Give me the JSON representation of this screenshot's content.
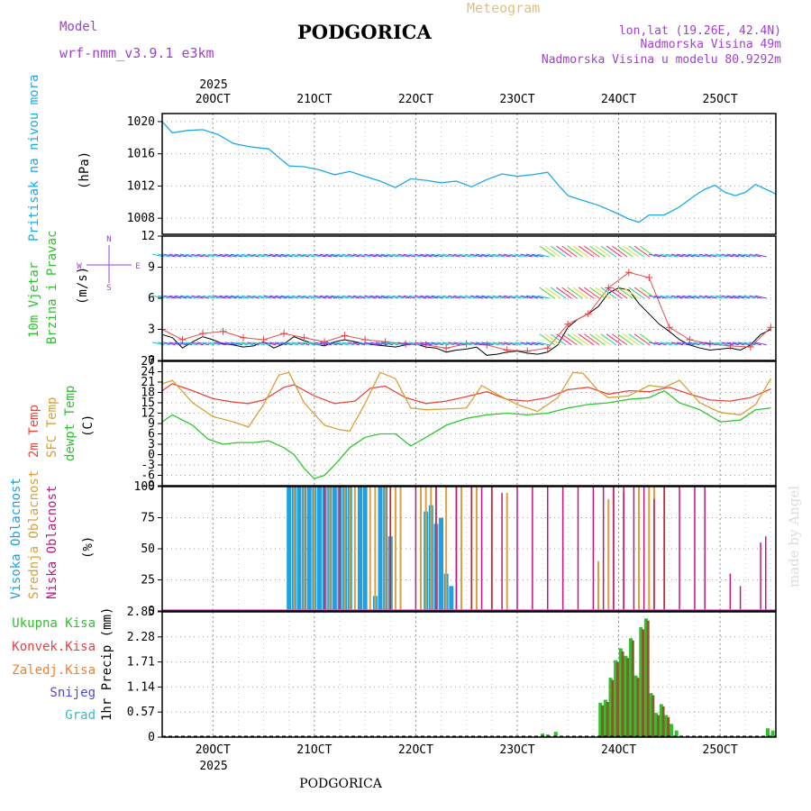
{
  "header": {
    "model_label": "Model",
    "model_name": "wrf-nmm_v3.9.1 e3km",
    "city": "PODGORICA",
    "meteogram": "Meteogram",
    "lonlat": "lon,lat (19.26E, 42.4N)",
    "elevation": "Nadmorska Visina 49m",
    "model_elevation": "Nadmorska Visina u modelu 80.9292m"
  },
  "footer_city": "PODGORICA",
  "watermark": "made by Angel",
  "colors": {
    "pressure": "#1ea8e8",
    "temp2m": "#e8483c",
    "sfc": "#d8a038",
    "dewpt": "#30c830",
    "high_cloud": "#20a0e0",
    "mid_cloud": "#d8a040",
    "low_cloud": "#c01880",
    "total_precip": "#30c030",
    "conv_precip": "#8a5a28",
    "wind_label": "#30c030",
    "title_purple": "#a040d0",
    "meteogram_tan": "#e0c080"
  },
  "chart_data": [
    {
      "type": "line",
      "id": "pressure",
      "xlabels": [
        "20OCT",
        "21OCT",
        "22OCT",
        "23OCT",
        "24OCT",
        "25OCT"
      ],
      "year": "2025",
      "ylabel": "Pritisak na nivou mora",
      "unit": "(hPa)",
      "ylim": [
        1006,
        1021
      ],
      "yticks": [
        "1008",
        "1012",
        "1016",
        "1020"
      ],
      "series": [
        {
          "name": "pressure",
          "x": [
            19.5,
            19.6,
            19.75,
            19.9,
            20.05,
            20.2,
            20.35,
            20.55,
            20.75,
            20.9,
            21.05,
            21.2,
            21.35,
            21.5,
            21.65,
            21.8,
            21.95,
            22.1,
            22.25,
            22.4,
            22.55,
            22.7,
            22.85,
            23.0,
            23.15,
            23.3,
            23.4,
            23.5,
            23.65,
            23.8,
            23.95,
            24.1,
            24.2,
            24.3,
            24.45,
            24.6,
            24.75,
            24.85,
            24.95,
            25.05,
            25.15,
            25.25,
            25.35,
            25.45,
            25.55
          ],
          "values": [
            1020,
            1018.6,
            1018.9,
            1019,
            1018.4,
            1017.3,
            1016.9,
            1016.6,
            1014.5,
            1014.4,
            1014,
            1013.4,
            1013.8,
            1013.2,
            1012.6,
            1011.8,
            1012.9,
            1012.7,
            1012.4,
            1012.6,
            1011.9,
            1012.8,
            1013.5,
            1013.2,
            1013.4,
            1013.7,
            1012.2,
            1010.8,
            1010.2,
            1009.6,
            1008.8,
            1007.9,
            1007.5,
            1008.4,
            1008.4,
            1009.4,
            1010.8,
            1011.6,
            1012.1,
            1011.2,
            1010.8,
            1011.2,
            1012.2,
            1011.6,
            1011
          ]
        }
      ]
    },
    {
      "type": "line",
      "id": "wind",
      "ylabel_line1": "10m Vjetar",
      "ylabel_line2": "Brzina i Pravac",
      "unit": "(m/s)",
      "compass": {
        "n": "N",
        "s": "S",
        "e": "E",
        "w": "W"
      },
      "ylim": [
        0,
        12
      ],
      "yticks": [
        "0",
        "3",
        "6",
        "9",
        "12"
      ],
      "series": [
        {
          "name": "wind_speed_10m",
          "x": [
            19.5,
            19.6,
            19.7,
            19.8,
            19.9,
            20.0,
            20.1,
            20.2,
            20.3,
            20.4,
            20.5,
            20.6,
            20.7,
            20.8,
            20.9,
            21.0,
            21.1,
            21.2,
            21.3,
            21.4,
            21.5,
            21.6,
            21.7,
            21.8,
            21.9,
            22.0,
            22.1,
            22.2,
            22.3,
            22.4,
            22.5,
            22.6,
            22.7,
            22.8,
            22.9,
            23.0,
            23.1,
            23.2,
            23.3,
            23.4,
            23.5,
            23.6,
            23.7,
            23.8,
            23.9,
            24.0,
            24.1,
            24.2,
            24.3,
            24.4,
            24.5,
            24.6,
            24.7,
            24.8,
            24.9,
            25.0,
            25.1,
            25.2,
            25.3,
            25.4,
            25.5
          ],
          "values": [
            2.5,
            2.2,
            1.2,
            1.8,
            2.3,
            2.0,
            1.6,
            1.5,
            1.3,
            1.4,
            1.8,
            1.2,
            1.6,
            2.3,
            1.9,
            1.6,
            1.4,
            1.8,
            2.0,
            1.8,
            1.6,
            1.5,
            1.4,
            1.3,
            1.5,
            1.6,
            1.3,
            1.2,
            0.8,
            1.0,
            1.1,
            1.3,
            0.5,
            0.6,
            0.8,
            0.9,
            0.7,
            0.6,
            0.8,
            1.5,
            3.2,
            4.0,
            4.5,
            5.2,
            6.5,
            7.0,
            6.8,
            5.5,
            4.5,
            3.5,
            2.8,
            2.0,
            1.5,
            1.2,
            1.0,
            1.1,
            1.2,
            1.0,
            1.5,
            2.5,
            3.0
          ]
        },
        {
          "name": "wind_gust",
          "x": [
            19.5,
            19.7,
            19.9,
            20.1,
            20.3,
            20.5,
            20.7,
            20.9,
            21.1,
            21.3,
            21.5,
            21.7,
            21.9,
            22.1,
            22.3,
            22.5,
            22.7,
            22.9,
            23.1,
            23.3,
            23.5,
            23.7,
            23.9,
            24.1,
            24.3,
            24.5,
            24.7,
            24.9,
            25.1,
            25.3,
            25.5
          ],
          "values": [
            3.0,
            2.0,
            2.6,
            2.8,
            2.2,
            2.0,
            2.6,
            2.2,
            1.8,
            2.4,
            2.0,
            1.8,
            1.6,
            1.5,
            1.2,
            1.6,
            1.5,
            1.0,
            0.9,
            1.2,
            3.5,
            4.5,
            7.0,
            8.5,
            8.0,
            3.2,
            2.0,
            1.6,
            1.4,
            1.3,
            3.2
          ]
        }
      ]
    },
    {
      "type": "line",
      "id": "temperature",
      "ylabel_2m": "2m Temp",
      "ylabel_sfc": "SFC Temp",
      "ylabel_dew": "dewpt Temp",
      "unit": "(C)",
      "ylim": [
        -9,
        27
      ],
      "yticks": [
        "-9",
        "-6",
        "-3",
        "0",
        "3",
        "6",
        "9",
        "12",
        "15",
        "18",
        "21",
        "24",
        "27"
      ],
      "series": [
        {
          "name": "2m Temp",
          "x": [
            19.5,
            19.6,
            19.8,
            20.0,
            20.2,
            20.35,
            20.5,
            20.7,
            20.8,
            21.0,
            21.2,
            21.4,
            21.55,
            21.7,
            21.9,
            22.1,
            22.3,
            22.5,
            22.7,
            22.9,
            23.1,
            23.3,
            23.5,
            23.7,
            23.9,
            24.1,
            24.3,
            24.5,
            24.7,
            24.9,
            25.1,
            25.3,
            25.5
          ],
          "values": [
            18.5,
            20.5,
            18.5,
            16.2,
            15.2,
            14.8,
            15.8,
            19.5,
            20.2,
            17.0,
            14.8,
            15.5,
            19.2,
            19.8,
            16.5,
            14.8,
            15.5,
            16.8,
            18.2,
            16.0,
            15.5,
            16.5,
            18.8,
            19.5,
            17.5,
            18.5,
            18.2,
            19.5,
            17.5,
            15.8,
            15.5,
            16.5,
            19.0
          ]
        },
        {
          "name": "SFC Temp",
          "x": [
            19.5,
            19.6,
            19.8,
            20.0,
            20.2,
            20.35,
            20.5,
            20.65,
            20.75,
            20.9,
            21.1,
            21.25,
            21.35,
            21.5,
            21.65,
            21.8,
            21.95,
            22.1,
            22.3,
            22.5,
            22.65,
            22.8,
            23.0,
            23.2,
            23.4,
            23.55,
            23.65,
            23.8,
            23.9,
            24.1,
            24.3,
            24.45,
            24.6,
            24.8,
            25.0,
            25.2,
            25.35,
            25.5
          ],
          "values": [
            20.5,
            21.5,
            15.0,
            11.0,
            9.5,
            8.0,
            14.5,
            23.0,
            23.8,
            15.0,
            8.5,
            7.2,
            6.8,
            14.8,
            23.8,
            22.0,
            13.5,
            13.0,
            13.2,
            13.5,
            20.0,
            17.5,
            14.5,
            12.5,
            16.5,
            23.8,
            23.5,
            18.5,
            16.5,
            17.0,
            20.0,
            19.5,
            21.5,
            15.0,
            12.2,
            11.5,
            14.5,
            22.0
          ]
        },
        {
          "name": "dewpt Temp",
          "x": [
            19.5,
            19.6,
            19.8,
            19.95,
            20.1,
            20.25,
            20.4,
            20.55,
            20.7,
            20.8,
            20.9,
            21.0,
            21.1,
            21.2,
            21.35,
            21.5,
            21.65,
            21.8,
            21.95,
            22.1,
            22.3,
            22.5,
            22.7,
            22.9,
            23.1,
            23.3,
            23.5,
            23.7,
            23.9,
            24.1,
            24.3,
            24.45,
            24.6,
            24.8,
            25.0,
            25.2,
            25.35,
            25.5
          ],
          "values": [
            9.5,
            11.5,
            8.5,
            4.5,
            3.0,
            3.5,
            3.5,
            4.0,
            2.0,
            0.0,
            -4.0,
            -7.0,
            -6.0,
            -3.0,
            2.0,
            5.0,
            6.0,
            6.0,
            2.5,
            5.0,
            8.5,
            10.5,
            11.5,
            12.0,
            11.5,
            12.0,
            13.5,
            14.5,
            15.0,
            16.0,
            16.5,
            18.5,
            15.0,
            13.0,
            9.5,
            10.0,
            13.0,
            13.5
          ]
        }
      ]
    },
    {
      "type": "bar",
      "id": "clouds",
      "ylabel_high": "Visoka Oblacnost",
      "ylabel_mid": "Srednja Oblacnost",
      "ylabel_low": "Niska Oblacnost",
      "unit": "(%)",
      "ylim": [
        0,
        100
      ],
      "yticks": [
        "0",
        "25",
        "50",
        "75",
        "100"
      ],
      "series": [
        {
          "name": "Visoka Oblacnost",
          "x": [
            20.75,
            20.8,
            20.85,
            20.9,
            20.95,
            21.0,
            21.05,
            21.1,
            21.15,
            21.2,
            21.25,
            21.3,
            21.35,
            21.45,
            21.5,
            21.6,
            21.65,
            21.7,
            21.75,
            22.1,
            22.15,
            22.2,
            22.25,
            22.3,
            22.35
          ],
          "values": [
            100,
            100,
            100,
            100,
            100,
            100,
            100,
            100,
            100,
            100,
            100,
            100,
            100,
            100,
            100,
            12,
            100,
            100,
            60,
            80,
            85,
            70,
            75,
            30,
            20
          ]
        },
        {
          "name": "Srednja Oblacnost",
          "x": [
            20.8,
            20.9,
            21.0,
            21.1,
            21.15,
            21.25,
            21.3,
            21.35,
            21.4,
            21.55,
            21.6,
            21.7,
            21.75,
            21.8,
            21.85,
            22.05,
            22.1,
            22.15,
            22.2,
            22.3,
            22.4,
            22.45,
            22.55,
            22.6,
            22.75,
            22.9,
            23.8,
            23.9,
            23.95,
            24.05,
            24.2,
            24.3,
            24.35,
            24.45
          ],
          "values": [
            100,
            100,
            100,
            100,
            100,
            100,
            100,
            100,
            100,
            100,
            100,
            100,
            100,
            100,
            100,
            100,
            100,
            100,
            100,
            100,
            100,
            100,
            100,
            100,
            100,
            95,
            40,
            90,
            100,
            95,
            100,
            100,
            100,
            100
          ]
        },
        {
          "name": "Niska Oblacnost",
          "x": [
            21.1,
            21.25,
            21.75,
            22.0,
            22.2,
            22.4,
            22.55,
            22.65,
            22.75,
            22.85,
            23.0,
            23.15,
            23.3,
            23.45,
            23.6,
            23.75,
            23.85,
            23.95,
            24.05,
            24.15,
            24.25,
            24.35,
            24.45,
            24.6,
            24.75,
            24.85,
            25.1,
            25.2,
            25.4,
            25.45
          ],
          "values": [
            100,
            100,
            100,
            100,
            100,
            100,
            100,
            100,
            100,
            95,
            100,
            100,
            100,
            100,
            100,
            100,
            100,
            100,
            100,
            100,
            100,
            90,
            100,
            100,
            100,
            100,
            30,
            20,
            55,
            60
          ]
        }
      ]
    },
    {
      "type": "bar",
      "id": "precip",
      "legend": [
        "Ukupna Kisa",
        "Konvek.Kisa",
        "Zaledj.Kisa",
        "Snijeg",
        "Grad"
      ],
      "legend_colors": [
        "#30c030",
        "#e84040",
        "#f08030",
        "#4848d8",
        "#30c0c0"
      ],
      "ylabel": "1hr Precip (mm)",
      "ylim": [
        0,
        2.85
      ],
      "yticks": [
        "0",
        "0.57",
        "1.14",
        "1.71",
        "2.28",
        "2.85"
      ],
      "series": [
        {
          "name": "Ukupna Kisa",
          "x": [
            23.25,
            23.3,
            23.38,
            23.82,
            23.87,
            23.92,
            23.97,
            24.02,
            24.07,
            24.12,
            24.17,
            24.22,
            24.27,
            24.32,
            24.37,
            24.42,
            24.47,
            24.52,
            24.57,
            25.47,
            25.52
          ],
          "values": [
            0.08,
            0.06,
            0.12,
            0.78,
            0.85,
            1.35,
            1.75,
            2.02,
            1.85,
            2.25,
            1.4,
            2.5,
            2.7,
            1.0,
            0.55,
            0.75,
            0.5,
            0.3,
            0.15,
            0.2,
            0.15
          ]
        },
        {
          "name": "Konvek.Kisa",
          "x": [
            23.84,
            23.89,
            23.94,
            23.99,
            24.04,
            24.09,
            24.14,
            24.19,
            24.24,
            24.29,
            24.34,
            24.39,
            24.44,
            24.49
          ],
          "values": [
            0.72,
            0.8,
            1.3,
            1.7,
            1.95,
            1.8,
            2.2,
            1.35,
            2.45,
            2.65,
            0.95,
            0.5,
            0.7,
            0.45
          ]
        }
      ]
    }
  ]
}
